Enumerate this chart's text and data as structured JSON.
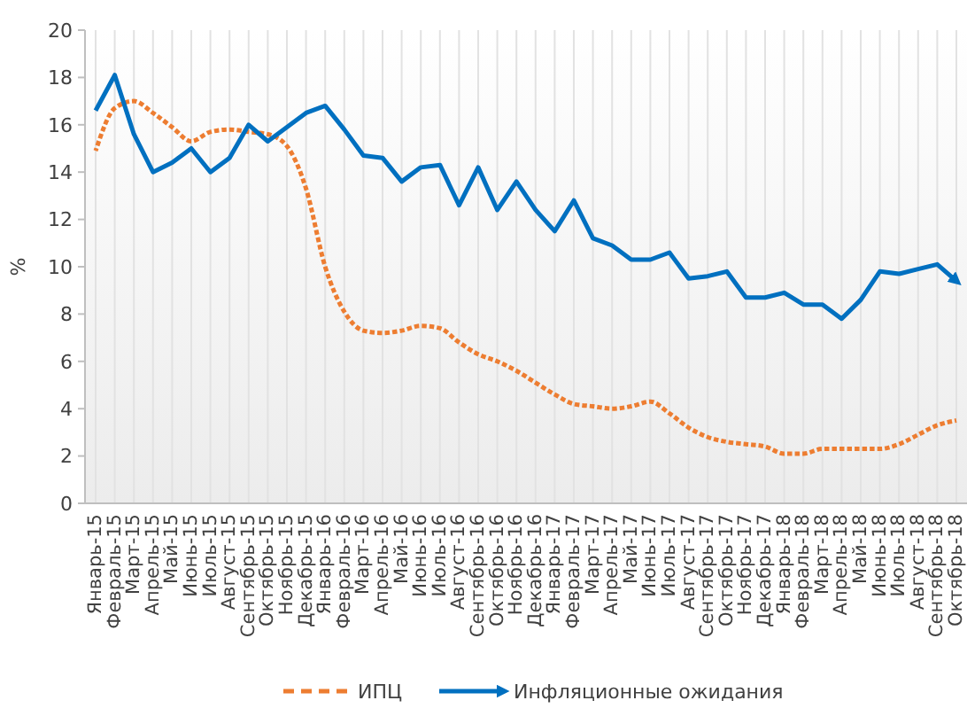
{
  "chart_data": {
    "type": "line",
    "ylabel": "%",
    "ylim": [
      0,
      20
    ],
    "yticks": [
      0,
      2,
      4,
      6,
      8,
      10,
      12,
      14,
      16,
      18,
      20
    ],
    "grid": "x",
    "legend": "bottom",
    "categories": [
      "Январь-15",
      "Февраль-15",
      "Март-15",
      "Апрель-15",
      "Май-15",
      "Июнь-15",
      "Июль-15",
      "Август-15",
      "Сентябрь-15",
      "Октябрь-15",
      "Ноябрь-15",
      "Декабрь-15",
      "Январь-16",
      "Февраль-16",
      "Март-16",
      "Апрель-16",
      "Май-16",
      "Июнь-16",
      "Июль-16",
      "Август-16",
      "Сентябрь-16",
      "Октябрь-16",
      "Ноябрь-16",
      "Декабрь-16",
      "Январь-17",
      "Февраль-17",
      "Март-17",
      "Апрель-17",
      "Май-17",
      "Июнь-17",
      "Июль-17",
      "Август-17",
      "Сентябрь-17",
      "Октябрь-17",
      "Ноябрь-17",
      "Декабрь-17",
      "Январь-18",
      "Февраль-18",
      "Март-18",
      "Апрель-18",
      "Май-18",
      "Июнь-18",
      "Июль-18",
      "Август-18",
      "Сентябрь-18",
      "Октябрь-18"
    ],
    "series": [
      {
        "name": "ИПЦ",
        "color": "#ed7d31",
        "line_style": "dashed",
        "values": [
          14.9,
          16.7,
          17.0,
          16.5,
          15.9,
          15.3,
          15.7,
          15.8,
          15.7,
          15.6,
          15.1,
          13.3,
          10.0,
          8.1,
          7.3,
          7.2,
          7.3,
          7.5,
          7.4,
          6.8,
          6.3,
          6.0,
          5.6,
          5.1,
          4.6,
          4.2,
          4.1,
          4.0,
          4.1,
          4.3,
          3.8,
          3.2,
          2.8,
          2.6,
          2.5,
          2.4,
          2.1,
          2.1,
          2.3,
          2.3,
          2.3,
          2.3,
          2.5,
          2.9,
          3.3,
          3.5
        ]
      },
      {
        "name": "Инфляционные ожидания",
        "color": "#0070c0",
        "line_style": "solid",
        "values": [
          16.6,
          18.1,
          15.6,
          14.0,
          14.4,
          15.0,
          14.0,
          14.6,
          16.0,
          15.3,
          15.9,
          16.5,
          16.8,
          15.8,
          14.7,
          14.6,
          13.6,
          14.2,
          14.3,
          12.6,
          14.2,
          12.4,
          13.6,
          12.4,
          11.5,
          12.8,
          11.2,
          10.9,
          10.3,
          10.3,
          10.6,
          9.5,
          9.6,
          9.8,
          8.7,
          8.7,
          8.9,
          8.4,
          8.4,
          7.8,
          8.6,
          9.8,
          9.7,
          9.9,
          10.1,
          9.4
        ]
      }
    ]
  }
}
